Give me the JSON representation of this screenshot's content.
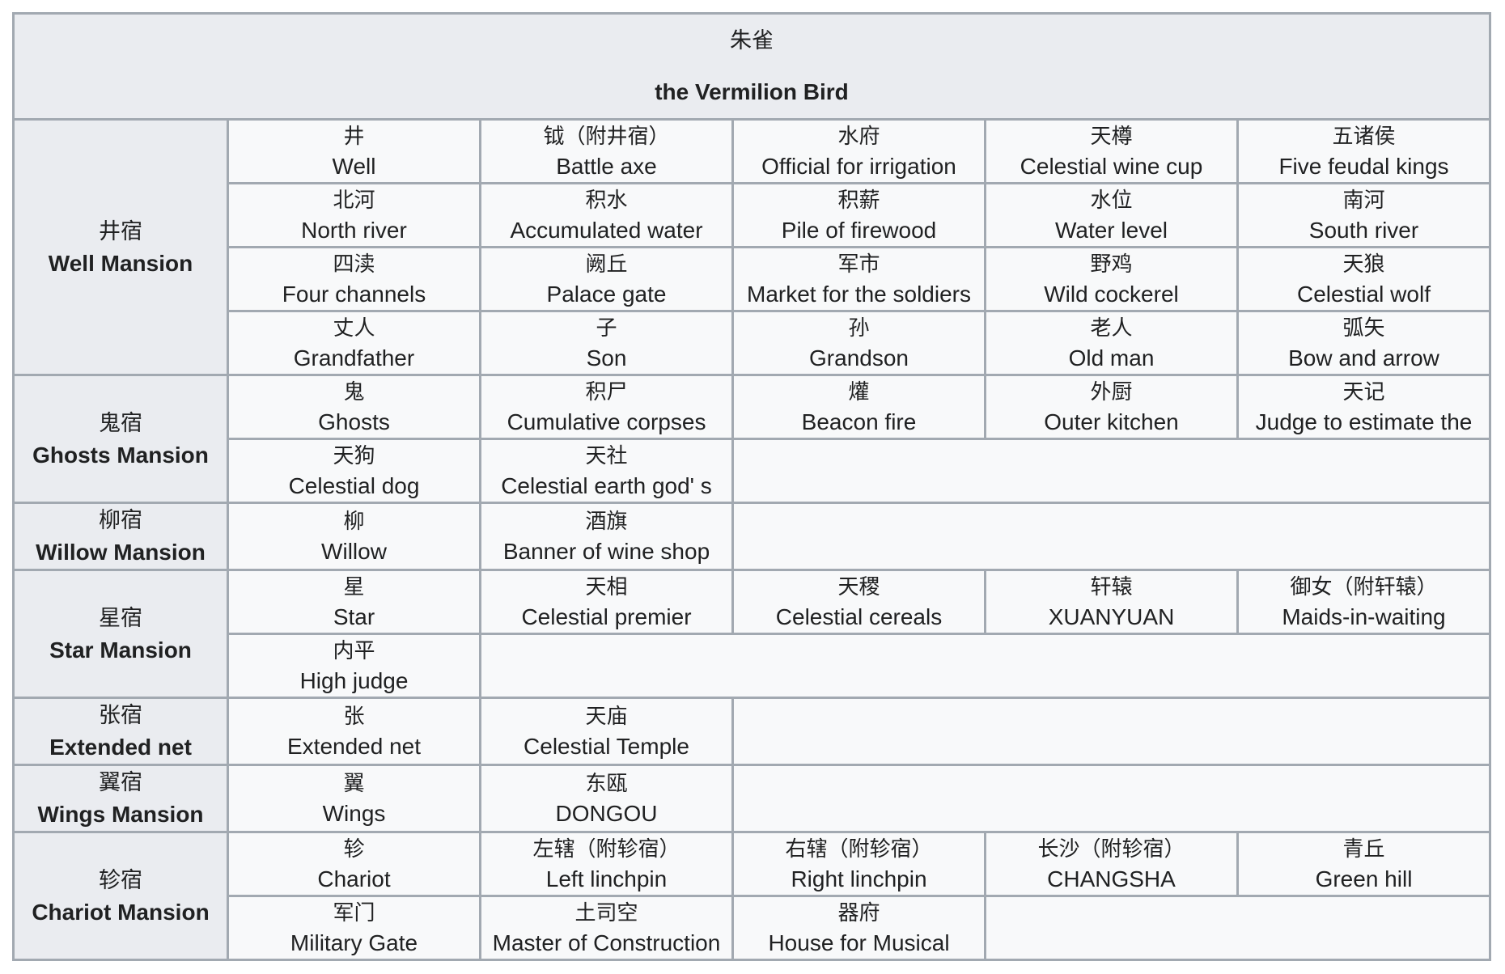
{
  "header": {
    "title_zh": "朱雀",
    "title_en": "the Vermilion Bird"
  },
  "colors": {
    "border": "#a2a9b1",
    "header_bg": "#eaecf0",
    "cell_bg": "#f8f9fa"
  },
  "groups": [
    {
      "zh": "井宿",
      "en": "Well Mansion",
      "rows": [
        [
          {
            "zh": "井",
            "en": "Well"
          },
          {
            "zh": "钺（附井宿）",
            "en": "Battle axe"
          },
          {
            "zh": "水府",
            "en": "Official for irrigation"
          },
          {
            "zh": "天樽",
            "en": "Celestial wine cup"
          },
          {
            "zh": "五诸侯",
            "en": "Five feudal kings"
          }
        ],
        [
          {
            "zh": "北河",
            "en": "North river"
          },
          {
            "zh": "积水",
            "en": "Accumulated water"
          },
          {
            "zh": "积薪",
            "en": "Pile of firewood"
          },
          {
            "zh": "水位",
            "en": "Water level"
          },
          {
            "zh": "南河",
            "en": "South river"
          }
        ],
        [
          {
            "zh": "四渎",
            "en": "Four channels"
          },
          {
            "zh": "阙丘",
            "en": "Palace gate"
          },
          {
            "zh": "军市",
            "en": "Market for the soldiers"
          },
          {
            "zh": "野鸡",
            "en": "Wild cockerel"
          },
          {
            "zh": "天狼",
            "en": "Celestial wolf"
          }
        ],
        [
          {
            "zh": "丈人",
            "en": "Grandfather"
          },
          {
            "zh": "子",
            "en": "Son"
          },
          {
            "zh": "孙",
            "en": "Grandson"
          },
          {
            "zh": "老人",
            "en": "Old man"
          },
          {
            "zh": "弧矢",
            "en": "Bow and arrow"
          }
        ]
      ]
    },
    {
      "zh": "鬼宿",
      "en": "Ghosts Mansion",
      "rows": [
        [
          {
            "zh": "鬼",
            "en": "Ghosts"
          },
          {
            "zh": "积尸",
            "en": "Cumulative corpses"
          },
          {
            "zh": "爟",
            "en": "Beacon fire"
          },
          {
            "zh": "外厨",
            "en": "Outer kitchen"
          },
          {
            "zh": "天记",
            "en": "Judge to estimate the"
          }
        ],
        [
          {
            "zh": "天狗",
            "en": "Celestial dog"
          },
          {
            "zh": "天社",
            "en": "Celestial earth god' s"
          }
        ]
      ]
    },
    {
      "zh": "柳宿",
      "en": "Willow Mansion",
      "rows": [
        [
          {
            "zh": "柳",
            "en": "Willow"
          },
          {
            "zh": "酒旗",
            "en": "Banner of wine shop"
          }
        ]
      ]
    },
    {
      "zh": "星宿",
      "en": "Star Mansion",
      "rows": [
        [
          {
            "zh": "星",
            "en": "Star"
          },
          {
            "zh": "天相",
            "en": "Celestial premier"
          },
          {
            "zh": "天稷",
            "en": "Celestial cereals"
          },
          {
            "zh": "轩辕",
            "en": "XUANYUAN"
          },
          {
            "zh": "御女（附轩辕）",
            "en": "Maids-in-waiting"
          }
        ],
        [
          {
            "zh": "内平",
            "en": "High judge"
          }
        ]
      ]
    },
    {
      "zh": "张宿",
      "en": "Extended net",
      "rows": [
        [
          {
            "zh": "张",
            "en": "Extended net"
          },
          {
            "zh": "天庙",
            "en": "Celestial Temple"
          }
        ]
      ]
    },
    {
      "zh": "翼宿",
      "en": "Wings Mansion",
      "rows": [
        [
          {
            "zh": "翼",
            "en": "Wings"
          },
          {
            "zh": "东瓯",
            "en": "DONGOU"
          }
        ]
      ]
    },
    {
      "zh": "轸宿",
      "en": "Chariot Mansion",
      "rows": [
        [
          {
            "zh": "轸",
            "en": "Chariot"
          },
          {
            "zh": "左辖（附轸宿）",
            "en": "Left linchpin"
          },
          {
            "zh": "右辖（附轸宿）",
            "en": "Right linchpin"
          },
          {
            "zh": "长沙（附轸宿）",
            "en": "CHANGSHA"
          },
          {
            "zh": "青丘",
            "en": "Green hill"
          }
        ],
        [
          {
            "zh": "军门",
            "en": "Military Gate"
          },
          {
            "zh": "土司空",
            "en": "Master of Construction"
          },
          {
            "zh": "器府",
            "en": "House for Musical"
          }
        ]
      ]
    }
  ]
}
